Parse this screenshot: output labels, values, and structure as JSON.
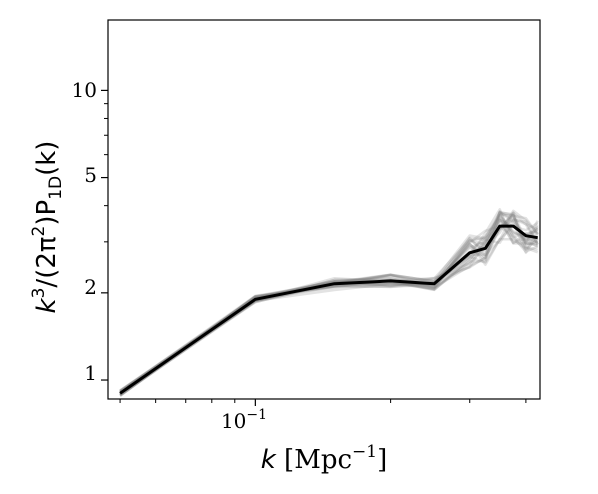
{
  "chart_data": {
    "type": "line",
    "title": "",
    "xlabel": {
      "var": "k",
      "unit_base": "Mpc",
      "unit_exp": "−1",
      "text": "k [Mpc^-1]"
    },
    "ylabel": {
      "text": "k^3/(2π^2)P_1D(k)",
      "base": "k",
      "exp": "3",
      "mid": "/(2π",
      "exp2": "2",
      "close": ")P",
      "sub": "1D",
      "tail": "(k)"
    },
    "xscale": "log",
    "yscale": "log",
    "xlim": [
      0.047,
      0.43
    ],
    "ylim": [
      0.86,
      17.5
    ],
    "xticks_major": [
      {
        "value": 0.1,
        "label_base": "10",
        "label_exp": "−1"
      }
    ],
    "xticks_minor": [
      0.05,
      0.06,
      0.07,
      0.08,
      0.09,
      0.2,
      0.3,
      0.4
    ],
    "yticks_labeled": [
      {
        "value": 1,
        "label": "1"
      },
      {
        "value": 2,
        "label": "2"
      },
      {
        "value": 5,
        "label": "5"
      },
      {
        "value": 10,
        "label": "10"
      }
    ],
    "yticks_minor": [
      3,
      4,
      6,
      7,
      8,
      9
    ],
    "grid": false,
    "legend": "none",
    "colors": {
      "mean_line": "#000000",
      "realizations": "#808080"
    },
    "x": [
      0.05,
      0.1,
      0.15,
      0.2,
      0.25,
      0.3,
      0.325,
      0.35,
      0.375,
      0.4,
      0.425
    ],
    "mean_series": {
      "values": [
        0.9,
        1.9,
        2.15,
        2.2,
        2.15,
        2.75,
        2.85,
        3.4,
        3.4,
        3.15,
        3.1
      ]
    },
    "realization_count": 25
  }
}
